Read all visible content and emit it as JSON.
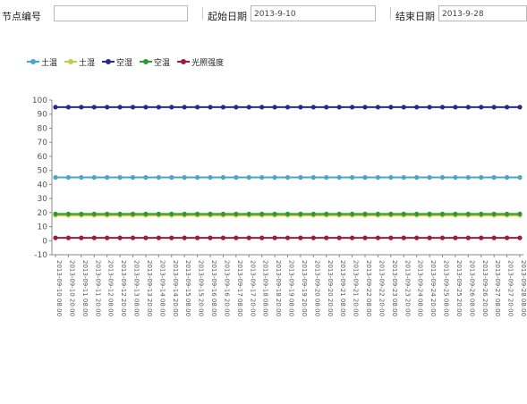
{
  "toolbar": {
    "node_label": "节点编号",
    "node_value": "",
    "start_label": "起始日期",
    "start_value": "2013-9-10",
    "end_label": "结束日期",
    "end_value": "2013-9-28"
  },
  "chart_data": {
    "type": "line",
    "title": "",
    "xlabel": "",
    "ylabel": "",
    "ylim": [
      -10,
      100
    ],
    "yticks": [
      -10,
      0,
      10,
      20,
      30,
      40,
      50,
      60,
      70,
      80,
      90,
      100
    ],
    "legend_position": "top-left",
    "categories": [
      "2013-09-10 08:00",
      "2013-09-10 20:00",
      "2013-09-11 08:00",
      "2013-09-11 20:00",
      "2013-09-12 08:00",
      "2013-09-12 20:00",
      "2013-09-13 08:00",
      "2013-09-13 20:00",
      "2013-09-14 08:00",
      "2013-09-14 20:00",
      "2013-09-15 08:00",
      "2013-09-15 20:00",
      "2013-09-16 08:00",
      "2013-09-16 20:00",
      "2013-09-17 08:00",
      "2013-09-17 20:00",
      "2013-09-18 08:00",
      "2013-09-18 20:00",
      "2013-09-19 08:00",
      "2013-09-19 20:00",
      "2013-09-20 08:00",
      "2013-09-20 20:00",
      "2013-09-21 08:00",
      "2013-09-21 20:00",
      "2013-09-22 08:00",
      "2013-09-22 20:00",
      "2013-09-23 08:00",
      "2013-09-23 20:00",
      "2013-09-24 08:00",
      "2013-09-24 20:00",
      "2013-09-25 08:00",
      "2013-09-25 20:00",
      "2013-09-26 08:00",
      "2013-09-26 20:00",
      "2013-09-27 08:00",
      "2013-09-27 20:00",
      "2013-09-28 08:00"
    ],
    "series": [
      {
        "name": "土温",
        "color": "#4aa7c4",
        "values": [
          45,
          45,
          45,
          45,
          45,
          45,
          45,
          45,
          45,
          45,
          45,
          45,
          45,
          45,
          45,
          45,
          45,
          45,
          45,
          45,
          45,
          45,
          45,
          45,
          45,
          45,
          45,
          45,
          45,
          45,
          45,
          45,
          45,
          45,
          45,
          45,
          45
        ]
      },
      {
        "name": "土湿",
        "color": "#c8c84a",
        "values": [
          18,
          18,
          18,
          18,
          18,
          18,
          18,
          18,
          18,
          18,
          18,
          18,
          18,
          18,
          18,
          18,
          18,
          18,
          18,
          18,
          18,
          18,
          18,
          18,
          18,
          18,
          18,
          18,
          18,
          18,
          18,
          18,
          18,
          18,
          18,
          18,
          18
        ]
      },
      {
        "name": "空湿",
        "color": "#2a2a8c",
        "values": [
          95,
          95,
          95,
          95,
          95,
          95,
          95,
          95,
          95,
          95,
          95,
          95,
          95,
          95,
          95,
          95,
          95,
          95,
          95,
          95,
          95,
          95,
          95,
          95,
          95,
          95,
          95,
          95,
          95,
          95,
          95,
          95,
          95,
          95,
          95,
          95,
          95
        ]
      },
      {
        "name": "空温",
        "color": "#2e9a2e",
        "values": [
          19,
          19,
          19,
          19,
          19,
          19,
          19,
          19,
          19,
          19,
          19,
          19,
          19,
          19,
          19,
          19,
          19,
          19,
          19,
          19,
          19,
          19,
          19,
          19,
          19,
          19,
          19,
          19,
          19,
          19,
          19,
          19,
          19,
          19,
          19,
          19,
          19
        ]
      },
      {
        "name": "光照强度",
        "color": "#9c1c3a",
        "values": [
          2,
          2,
          2,
          2,
          2,
          2,
          2,
          2,
          2,
          2,
          2,
          2,
          2,
          2,
          2,
          2,
          2,
          2,
          2,
          2,
          2,
          2,
          2,
          2,
          2,
          2,
          2,
          2,
          2,
          2,
          2,
          2,
          2,
          2,
          2,
          2,
          2
        ]
      }
    ]
  }
}
